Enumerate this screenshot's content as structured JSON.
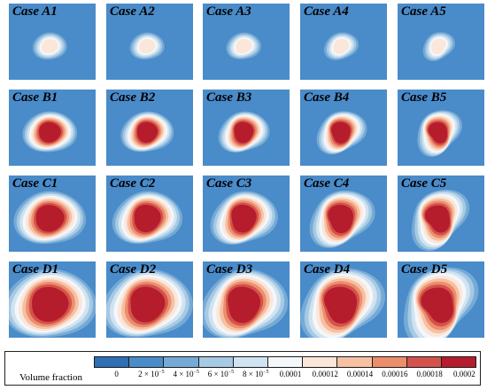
{
  "colors": {
    "background": "#4a8bc9",
    "levels": [
      "#2e6fb5",
      "#4a8bc9",
      "#75aad6",
      "#a6c9e4",
      "#d0e3f0",
      "#f4f7fa",
      "#fbe6da",
      "#f6c0a3",
      "#ec8e6c",
      "#d5524c",
      "#b51d2c"
    ]
  },
  "panels": [
    {
      "label": "Case A1",
      "blob": {
        "scale": 0.18,
        "peak": 6,
        "ellipse": [
          1.05,
          0.9
        ],
        "tilt": 0,
        "lobe": 0.05
      }
    },
    {
      "label": "Case A2",
      "blob": {
        "scale": 0.18,
        "peak": 6,
        "ellipse": [
          1.05,
          0.9
        ],
        "tilt": 0,
        "lobe": 0.06
      }
    },
    {
      "label": "Case A3",
      "blob": {
        "scale": 0.18,
        "peak": 6,
        "ellipse": [
          1.05,
          0.9
        ],
        "tilt": 0,
        "lobe": 0.07
      }
    },
    {
      "label": "Case A4",
      "blob": {
        "scale": 0.18,
        "peak": 6,
        "ellipse": [
          1.05,
          0.9
        ],
        "tilt": -0.2,
        "lobe": 0.08
      }
    },
    {
      "label": "Case A5",
      "blob": {
        "scale": 0.18,
        "peak": 6,
        "ellipse": [
          1.0,
          0.9
        ],
        "tilt": -0.4,
        "lobe": 0.1
      }
    },
    {
      "label": "Case B1",
      "blob": {
        "scale": 0.26,
        "peak": 10,
        "ellipse": [
          1.15,
          0.95
        ],
        "tilt": 0.05,
        "lobe": 0.06
      }
    },
    {
      "label": "Case B2",
      "blob": {
        "scale": 0.26,
        "peak": 10,
        "ellipse": [
          1.1,
          0.95
        ],
        "tilt": 0,
        "lobe": 0.08
      }
    },
    {
      "label": "Case B3",
      "blob": {
        "scale": 0.26,
        "peak": 10,
        "ellipse": [
          1.05,
          0.95
        ],
        "tilt": -0.1,
        "lobe": 0.1
      }
    },
    {
      "label": "Case B4",
      "blob": {
        "scale": 0.26,
        "peak": 10,
        "ellipse": [
          1.05,
          0.95
        ],
        "tilt": -0.3,
        "lobe": 0.12
      }
    },
    {
      "label": "Case B5",
      "blob": {
        "scale": 0.26,
        "peak": 10,
        "ellipse": [
          1.0,
          0.95
        ],
        "tilt": -0.6,
        "lobe": 0.14
      }
    },
    {
      "label": "Case C1",
      "blob": {
        "scale": 0.34,
        "peak": 10,
        "ellipse": [
          1.15,
          0.95
        ],
        "tilt": 0.05,
        "lobe": 0.07
      }
    },
    {
      "label": "Case C2",
      "blob": {
        "scale": 0.34,
        "peak": 10,
        "ellipse": [
          1.1,
          0.95
        ],
        "tilt": 0,
        "lobe": 0.09
      }
    },
    {
      "label": "Case C3",
      "blob": {
        "scale": 0.34,
        "peak": 10,
        "ellipse": [
          1.05,
          0.95
        ],
        "tilt": -0.1,
        "lobe": 0.11
      }
    },
    {
      "label": "Case C4",
      "blob": {
        "scale": 0.34,
        "peak": 10,
        "ellipse": [
          1.05,
          0.95
        ],
        "tilt": -0.35,
        "lobe": 0.13
      }
    },
    {
      "label": "Case C5",
      "blob": {
        "scale": 0.34,
        "peak": 10,
        "ellipse": [
          1.0,
          0.92
        ],
        "tilt": -0.65,
        "lobe": 0.16
      }
    },
    {
      "label": "Case D1",
      "blob": {
        "scale": 0.44,
        "peak": 10,
        "ellipse": [
          1.15,
          0.95
        ],
        "tilt": 0.05,
        "lobe": 0.07
      }
    },
    {
      "label": "Case D2",
      "blob": {
        "scale": 0.44,
        "peak": 10,
        "ellipse": [
          1.1,
          0.95
        ],
        "tilt": 0,
        "lobe": 0.09
      }
    },
    {
      "label": "Case D3",
      "blob": {
        "scale": 0.44,
        "peak": 10,
        "ellipse": [
          1.05,
          0.95
        ],
        "tilt": -0.1,
        "lobe": 0.11
      }
    },
    {
      "label": "Case D4",
      "blob": {
        "scale": 0.44,
        "peak": 10,
        "ellipse": [
          1.05,
          0.95
        ],
        "tilt": -0.35,
        "lobe": 0.13
      }
    },
    {
      "label": "Case D5",
      "blob": {
        "scale": 0.44,
        "peak": 10,
        "ellipse": [
          1.0,
          0.92
        ],
        "tilt": -0.65,
        "lobe": 0.16
      }
    }
  ],
  "legend": {
    "title": "Volume fraction",
    "ticks": [
      {
        "base": "0",
        "exp": ""
      },
      {
        "base": "2 × 10",
        "exp": "−5"
      },
      {
        "base": "4 × 10",
        "exp": "−5"
      },
      {
        "base": "6 × 10",
        "exp": "−5"
      },
      {
        "base": "8 × 10",
        "exp": "−5"
      },
      {
        "base": "0.0001",
        "exp": ""
      },
      {
        "base": "0.00012",
        "exp": ""
      },
      {
        "base": "0.00014",
        "exp": ""
      },
      {
        "base": "0.00016",
        "exp": ""
      },
      {
        "base": "0.00018",
        "exp": ""
      },
      {
        "base": "0.0002",
        "exp": ""
      }
    ]
  }
}
